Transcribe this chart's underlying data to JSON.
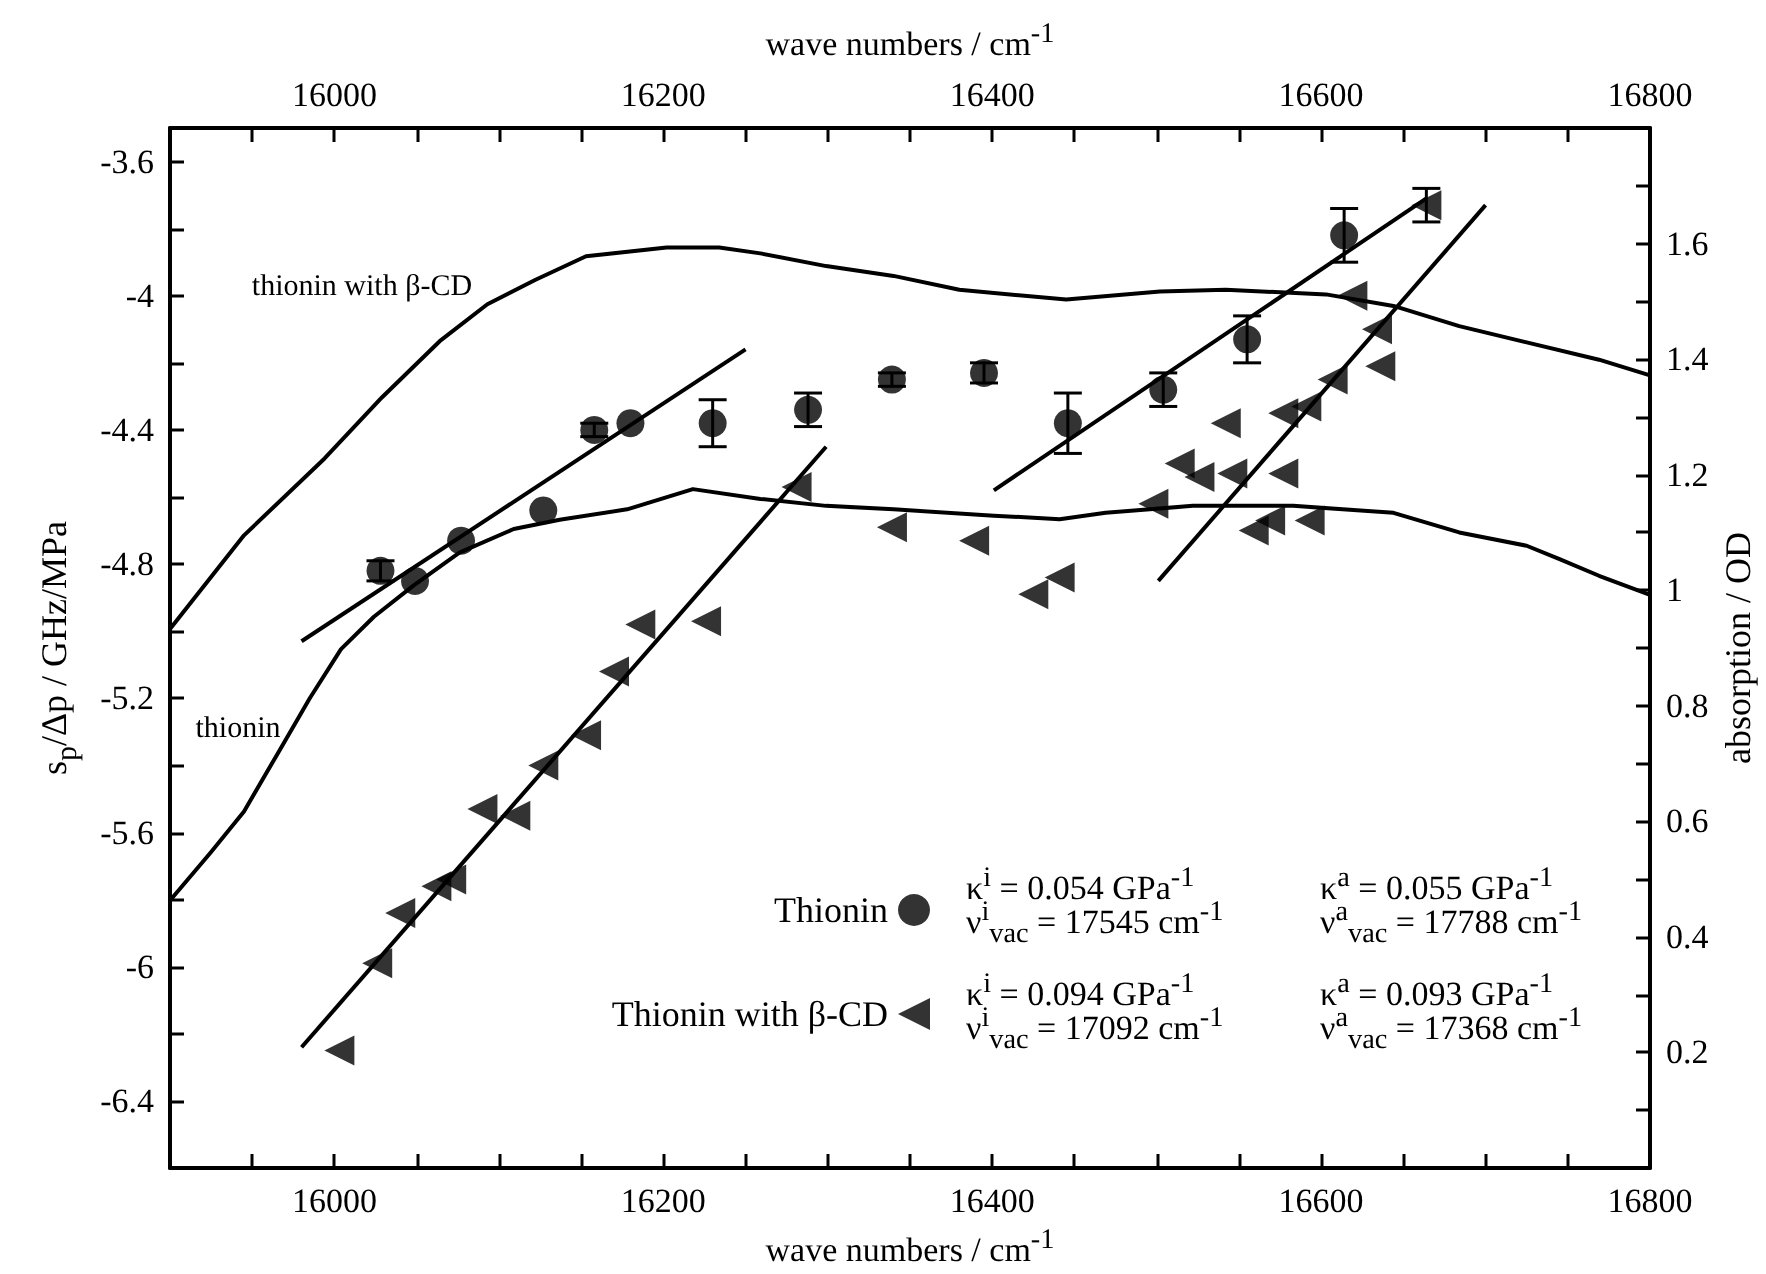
{
  "chart_data": {
    "type": "scatter",
    "xlabel": "wave numbers / cm$^{-1}$",
    "x2label": "wave numbers / cm$^{-1}$",
    "ylabel": "s$_{p}$/Δp / GHz/MPa",
    "y2label": "absorption / OD",
    "xlim": [
      15900,
      16800
    ],
    "x2lim": [
      15900,
      16800
    ],
    "ylim": [
      -6.6,
      -3.5
    ],
    "y2lim": [
      0,
      1.8
    ],
    "xticks": [
      {
        "value": 15950,
        "label": null
      },
      16000,
      {
        "value": 16050,
        "label": null
      },
      {
        "value": 16100,
        "label": null
      },
      {
        "value": 16150,
        "label": null
      },
      16200,
      {
        "value": 16250,
        "label": null
      },
      {
        "value": 16300,
        "label": null
      },
      {
        "value": 16350,
        "label": null
      },
      16400,
      {
        "value": 16450,
        "label": null
      },
      {
        "value": 16500,
        "label": null
      },
      {
        "value": 16550,
        "label": null
      },
      16600,
      {
        "value": 16650,
        "label": null
      },
      {
        "value": 16700,
        "label": null
      },
      {
        "value": 16750,
        "label": null
      },
      16800
    ],
    "x2ticks": [
      {
        "value": 15950,
        "label": null
      },
      16000,
      {
        "value": 16050,
        "label": null
      },
      {
        "value": 16100,
        "label": null
      },
      {
        "value": 16150,
        "label": null
      },
      16200,
      {
        "value": 16250,
        "label": null
      },
      {
        "value": 16300,
        "label": null
      },
      {
        "value": 16350,
        "label": null
      },
      16400,
      {
        "value": 16450,
        "label": null
      },
      {
        "value": 16500,
        "label": null
      },
      {
        "value": 16550,
        "label": null
      },
      16600,
      {
        "value": 16650,
        "label": null
      },
      {
        "value": 16700,
        "label": null
      },
      {
        "value": 16750,
        "label": null
      },
      16800
    ],
    "yticks": [
      -6.4,
      {
        "value": -6.2,
        "label": null
      },
      -6,
      {
        "value": -5.8,
        "label": null
      },
      -5.6,
      {
        "value": -5.4,
        "label": null
      },
      -5.2,
      {
        "value": -5,
        "label": null
      },
      -4.8,
      {
        "value": -4.6,
        "label": null
      },
      -4.4,
      {
        "value": -4.2,
        "label": null
      },
      -4,
      {
        "value": -3.8,
        "label": null
      },
      -3.6
    ],
    "y2ticks": [
      {
        "value": 0.1,
        "label": null
      },
      0.2,
      {
        "value": 0.3,
        "label": null
      },
      0.4,
      {
        "value": 0.5,
        "label": null
      },
      0.6,
      {
        "value": 0.7,
        "label": null
      },
      0.8,
      {
        "value": 0.9,
        "label": null
      },
      1,
      {
        "value": 1.1,
        "label": null
      },
      1.2,
      {
        "value": 1.3,
        "label": null
      },
      1.4,
      {
        "value": 1.5,
        "label": null
      },
      1.6,
      {
        "value": 1.7,
        "label": null
      }
    ],
    "grid": false,
    "legend": "bottom",
    "series": [
      {
        "name": "Thionin",
        "marker": "circle",
        "color": "#000000",
        "x": [
          16028,
          16049,
          16077,
          16127,
          16158,
          16180,
          16230,
          16288,
          16339,
          16395,
          16446,
          16504,
          16555,
          16614
        ],
        "values": [
          -4.82,
          -4.85,
          -4.73,
          -4.64,
          -4.4,
          -4.38,
          -4.38,
          -4.34,
          -4.25,
          -4.23,
          -4.38,
          -4.28,
          -4.13,
          -3.82
        ],
        "errors": [
          0.03,
          null,
          null,
          null,
          0.02,
          null,
          0.07,
          0.05,
          0.02,
          0.03,
          0.09,
          0.05,
          0.07,
          0.08
        ]
      },
      {
        "name": "Thionin with β-CD",
        "marker": "triangle",
        "color": "#000000",
        "x": [
          16003,
          16026,
          16040,
          16062,
          16071,
          16090,
          16110,
          16127,
          16153,
          16170,
          16186,
          16226,
          16281,
          16339,
          16389,
          16425,
          16441,
          16498,
          16514,
          16526,
          16546,
          16542,
          16577,
          16559,
          16569,
          16593,
          16577,
          16591,
          16607,
          16636,
          16634,
          16619,
          16664
        ],
        "values": [
          -6.25,
          -5.99,
          -5.84,
          -5.76,
          -5.74,
          -5.53,
          -5.55,
          -5.4,
          -5.31,
          -5.12,
          -4.98,
          -4.97,
          -4.57,
          -4.69,
          -4.73,
          -4.89,
          -4.84,
          -4.62,
          -4.5,
          -4.54,
          -4.53,
          -4.38,
          -4.53,
          -4.7,
          -4.67,
          -4.67,
          -4.35,
          -4.33,
          -4.25,
          -4.21,
          -4.1,
          -4.0,
          -3.73
        ],
        "errors": [
          null,
          null,
          null,
          null,
          null,
          null,
          null,
          null,
          null,
          null,
          null,
          null,
          null,
          null,
          null,
          null,
          null,
          null,
          null,
          null,
          null,
          null,
          null,
          null,
          null,
          null,
          null,
          null,
          null,
          null,
          null,
          null,
          0.05
        ]
      },
      {
        "type": "line",
        "marker": "none",
        "color": "#000000",
        "x": [
          15980,
          16250
        ],
        "values": [
          -5.03,
          -4.16
        ]
      },
      {
        "type": "line",
        "marker": "none",
        "color": "#000000",
        "x": [
          16401,
          16664
        ],
        "values": [
          -4.58,
          -3.71
        ]
      },
      {
        "type": "line",
        "marker": "none",
        "color": "#000000",
        "x": [
          15980,
          16299
        ],
        "values": [
          -6.24,
          -4.45
        ]
      },
      {
        "type": "line",
        "marker": "none",
        "color": "#000000",
        "x": [
          16501,
          16700
        ],
        "values": [
          -4.85,
          -3.73
        ]
      },
      {
        "type": "line",
        "axis": "y2",
        "marker": "none",
        "color": "#000000",
        "x": [
          15900,
          15945,
          15994,
          16029,
          16064,
          16093,
          16122,
          16153,
          16202,
          16234,
          16259,
          16299,
          16340,
          16380,
          16445,
          16502,
          16542,
          16603,
          16644,
          16684,
          16725,
          16769,
          16800
        ],
        "values": [
          0.933,
          1.095,
          1.228,
          1.334,
          1.431,
          1.495,
          1.537,
          1.578,
          1.593,
          1.593,
          1.583,
          1.561,
          1.544,
          1.52,
          1.503,
          1.517,
          1.52,
          1.512,
          1.492,
          1.457,
          1.429,
          1.399,
          1.372
        ]
      },
      {
        "type": "line",
        "axis": "y2",
        "marker": "none",
        "color": "#000000",
        "x": [
          15900,
          15925,
          15945,
          15965,
          15985,
          16004,
          16024,
          16048,
          16076,
          16109,
          16137,
          16178,
          16218,
          16259,
          16299,
          16340,
          16401,
          16441,
          16469,
          16522,
          16583,
          16644,
          16684,
          16725,
          16745,
          16769,
          16800
        ],
        "values": [
          0.463,
          0.547,
          0.617,
          0.715,
          0.813,
          0.898,
          0.954,
          1.008,
          1.065,
          1.106,
          1.122,
          1.14,
          1.175,
          1.158,
          1.146,
          1.14,
          1.129,
          1.123,
          1.134,
          1.146,
          1.146,
          1.134,
          1.1,
          1.077,
          1.054,
          1.025,
          0.992
        ]
      }
    ],
    "annotations": [
      "thionin with β-CD",
      "thionin",
      "κ$^{i}$ = 0.054 GPa$^{-1}$",
      "ν$^{i}$$_{vac}$ = 17545 cm$^{-1}$",
      "κ$^{a}$ = 0.055 GPa$^{-1}$",
      "ν$^{a}$$_{vac}$ = 17788 cm$^{-1}$",
      "κ$^{i}$ = 0.094 GPa$^{-1}$",
      "ν$^{i}$$_{vac}$ = 17092 cm$^{-1}$",
      "κ$^{a}$ = 0.093 GPa$^{-1}$",
      "ν$^{a}$$_{vac}$ = 17368 cm$^{-1}$"
    ]
  }
}
